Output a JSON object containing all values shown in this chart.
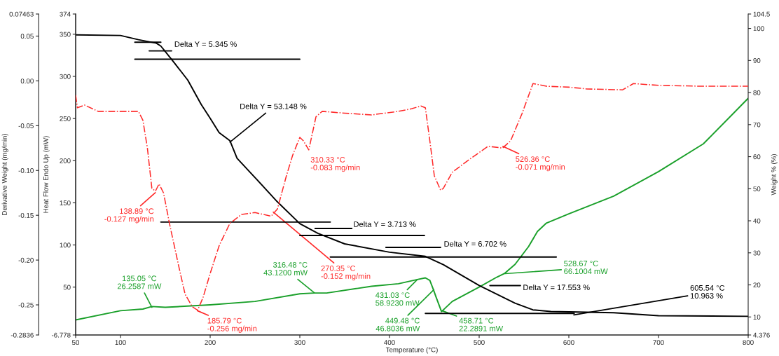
{
  "chart_data": {
    "type": "line",
    "xlabel": "Temperature (°C)",
    "ylabel": "Heat Flow Endo Up (mW)",
    "y2label": "Weight % (%)",
    "y3label": "Derivative Weight (mg/min)",
    "xlim": [
      50,
      800
    ],
    "xticks": [
      50,
      100,
      200,
      300,
      400,
      500,
      600,
      700,
      800
    ],
    "ylim": [
      -6.778,
      374
    ],
    "yticks": [
      -6.778,
      50,
      100,
      150,
      200,
      250,
      300,
      350,
      374
    ],
    "y2lim": [
      4.376,
      104.5
    ],
    "y2ticks": [
      4.376,
      10,
      20,
      30,
      40,
      50,
      60,
      70,
      80,
      90,
      100,
      104.5
    ],
    "y3lim": [
      -0.2836,
      0.07463
    ],
    "y3ticks": [
      -0.2836,
      {
        "value": -0.25,
        "label": "-0.25"
      },
      {
        "value": -0.2,
        "label": "-0.20"
      },
      {
        "value": -0.15,
        "label": "-0.15"
      },
      {
        "value": -0.1,
        "label": "-0.10"
      },
      {
        "value": -0.05,
        "label": "-0.05"
      },
      {
        "value": 0,
        "label": "0.00"
      },
      {
        "value": 0.05,
        "label": "0.05"
      },
      0.07463
    ],
    "grid": false,
    "legend": false,
    "series": [
      {
        "axis": "y",
        "color": "#1aa02a",
        "line_style": "solid",
        "x": [
          50,
          100,
          125,
          135,
          150,
          200,
          250,
          300,
          316,
          330,
          380,
          410,
          431,
          440,
          445,
          449,
          452,
          458,
          470,
          500,
          520,
          528,
          540,
          555,
          565,
          575,
          600,
          650,
          700,
          750,
          800
        ],
        "values": [
          11,
          22,
          24,
          27,
          26,
          29,
          33,
          42,
          43,
          43,
          51,
          54,
          59,
          61,
          58,
          47,
          38,
          21,
          33,
          50,
          62,
          66,
          77,
          98,
          116,
          126,
          137,
          158,
          187,
          220,
          274
        ]
      },
      {
        "axis": "y2",
        "color": "#000000",
        "line_style": "solid",
        "x": [
          50,
          100,
          120,
          140,
          145,
          150,
          160,
          175,
          190,
          200,
          210,
          222,
          230,
          250,
          275,
          300,
          320,
          350,
          400,
          440,
          460,
          500,
          540,
          560,
          580,
          650,
          700,
          800
        ],
        "values": [
          98.0,
          97.8,
          96.5,
          95.4,
          94.5,
          92.8,
          89.3,
          83.9,
          76.3,
          72.0,
          67.5,
          65.0,
          59.5,
          53.5,
          45.9,
          39.1,
          36.1,
          32.8,
          30.2,
          28.9,
          26.3,
          19.8,
          14.3,
          12.2,
          11.7,
          11.3,
          10.4,
          10.2
        ]
      },
      {
        "axis": "y3",
        "color": "#ff2a2a",
        "line_style": "dashed",
        "x": [
          50,
          52,
          60,
          75,
          100,
          120,
          125,
          130,
          135,
          139,
          143,
          148,
          155,
          165,
          172,
          180,
          186,
          192,
          200,
          210,
          222,
          235,
          250,
          268,
          275,
          285,
          292,
          300,
          304,
          310,
          318,
          325,
          350,
          380,
          410,
          425,
          435,
          440,
          445,
          450,
          457,
          460,
          470,
          490,
          510,
          526,
          535,
          548,
          560,
          575,
          600,
          620,
          660,
          672,
          700,
          750,
          800
        ],
        "values": [
          -0.016,
          -0.03,
          -0.027,
          -0.034,
          -0.034,
          -0.034,
          -0.044,
          -0.075,
          -0.12,
          -0.123,
          -0.115,
          -0.125,
          -0.161,
          -0.207,
          -0.238,
          -0.252,
          -0.256,
          -0.242,
          -0.215,
          -0.184,
          -0.159,
          -0.149,
          -0.147,
          -0.151,
          -0.143,
          -0.106,
          -0.083,
          -0.063,
          -0.067,
          -0.077,
          -0.04,
          -0.034,
          -0.036,
          -0.038,
          -0.034,
          -0.031,
          -0.028,
          -0.03,
          -0.067,
          -0.106,
          -0.122,
          -0.12,
          -0.102,
          -0.087,
          -0.073,
          -0.075,
          -0.067,
          -0.036,
          -0.003,
          -0.006,
          -0.007,
          -0.009,
          -0.01,
          -0.003,
          -0.005,
          -0.006,
          -0.006
        ]
      },
      {
        "axis": "y2",
        "color": "#000000",
        "line_style": "solid",
        "x": [
          116,
          145
        ],
        "values": [
          95.7,
          95.7
        ]
      },
      {
        "axis": "y2",
        "color": "#000000",
        "line_style": "solid",
        "x": [
          132,
          157
        ],
        "values": [
          93.0,
          93.0
        ]
      },
      {
        "axis": "y2",
        "color": "#000000",
        "line_style": "solid",
        "x": [
          116,
          300
        ],
        "values": [
          90.4,
          90.4
        ]
      },
      {
        "axis": "y2",
        "color": "#000000",
        "line_style": "solid",
        "x": [
          145,
          334
        ],
        "values": [
          39.6,
          39.6
        ]
      },
      {
        "axis": "y2",
        "color": "#000000",
        "line_style": "solid",
        "x": [
          317,
          358
        ],
        "values": [
          37.6,
          37.6
        ]
      },
      {
        "axis": "y2",
        "color": "#000000",
        "line_style": "solid",
        "x": [
          300,
          439
        ],
        "values": [
          35.4,
          35.4
        ]
      },
      {
        "axis": "y2",
        "color": "#000000",
        "line_style": "solid",
        "x": [
          396,
          457
        ],
        "values": [
          31.7,
          31.7
        ]
      },
      {
        "axis": "y2",
        "color": "#000000",
        "line_style": "solid",
        "x": [
          334,
          586
        ],
        "values": [
          28.7,
          28.7
        ]
      },
      {
        "axis": "y2",
        "color": "#000000",
        "line_style": "solid",
        "x": [
          512,
          546
        ],
        "values": [
          19.8,
          19.8
        ]
      },
      {
        "axis": "y2",
        "color": "#000000",
        "line_style": "solid",
        "x": [
          440,
          606
        ],
        "values": [
          11.1,
          11.1
        ]
      }
    ],
    "annotations": [
      "Delta Y = 5.345 %",
      {
        "text": "Delta Y = 53.148 %",
        "x": 222,
        "y": 222
      },
      {
        "text": "310.33 °C\n-0.083 mg/min",
        "x": 310.33,
        "y": 213
      },
      {
        "text": "526.36 °C\n-0.071 mg/min",
        "x": 526.36,
        "y": 217
      },
      {
        "text": "138.89 °C\n-0.127 mg/min",
        "x": 138.89,
        "y": 162
      },
      {
        "text": "185.79 °C\n-0.256 mg/min",
        "x": 185.79,
        "y": 22
      },
      {
        "text": "270.35 °C\n-0.152 mg/min",
        "x": 270.35,
        "y": 139
      },
      "Delta Y = 3.713 %",
      "Delta Y = 6.702 %",
      "Delta Y = 17.553 %",
      {
        "text": "605.54 °C\n10.963 %",
        "x": 605.54,
        "y": 17
      },
      {
        "text": "135.05 °C\n26.2587 mW",
        "x": 135.05,
        "y": 26
      },
      {
        "text": "316.48 °C\n43.1200 mW",
        "x": 316.48,
        "y": 43
      },
      {
        "text": "431.03 °C\n58.9230 mW",
        "x": 431.03,
        "y": 59
      },
      {
        "text": "449.48 °C\n46.8036 mW",
        "x": 449.48,
        "y": 47
      },
      {
        "text": "458.71 °C\n22.2891 mW",
        "x": 458.71,
        "y": 22
      },
      {
        "text": "528.67 °C\n66.1004 mW",
        "x": 528.67,
        "y": 66
      }
    ]
  }
}
